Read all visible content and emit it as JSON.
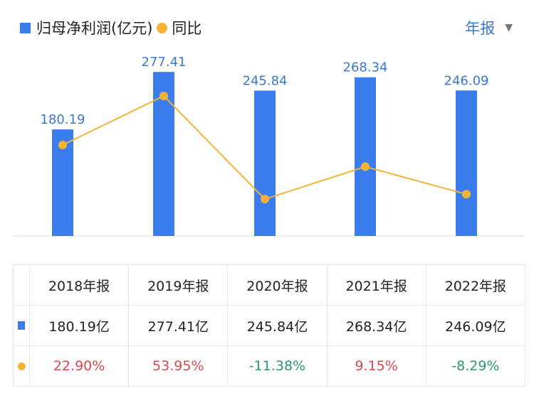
{
  "legend": {
    "bar_label": "归母净利润(亿元)",
    "line_label": "同比"
  },
  "period_selector": {
    "label": "年报",
    "icon": "caret-down-icon"
  },
  "colors": {
    "bar": "#3b7ded",
    "line": "#f5b335",
    "bar_label": "#3a78d0",
    "positive": "#d6494f",
    "negative": "#2e9a6a"
  },
  "chart_data": {
    "type": "bar+line",
    "categories": [
      "2018年报",
      "2019年报",
      "2020年报",
      "2021年报",
      "2022年报"
    ],
    "series": [
      {
        "name": "归母净利润(亿元)",
        "type": "bar",
        "values": [
          180.19,
          277.41,
          245.84,
          268.34,
          246.09
        ],
        "labels": [
          "180.19",
          "277.41",
          "245.84",
          "268.34",
          "246.09"
        ]
      },
      {
        "name": "同比",
        "type": "line",
        "values": [
          22.9,
          53.95,
          -11.38,
          9.15,
          -8.29
        ]
      }
    ],
    "grid": false,
    "legend": "top-left"
  },
  "table": {
    "headers": [
      "2018年报",
      "2019年报",
      "2020年报",
      "2021年报",
      "2022年报"
    ],
    "profit_row": [
      "180.19亿",
      "277.41亿",
      "245.84亿",
      "268.34亿",
      "246.09亿"
    ],
    "yoy_row": [
      "22.90%",
      "53.95%",
      "-11.38%",
      "9.15%",
      "-8.29%"
    ]
  }
}
